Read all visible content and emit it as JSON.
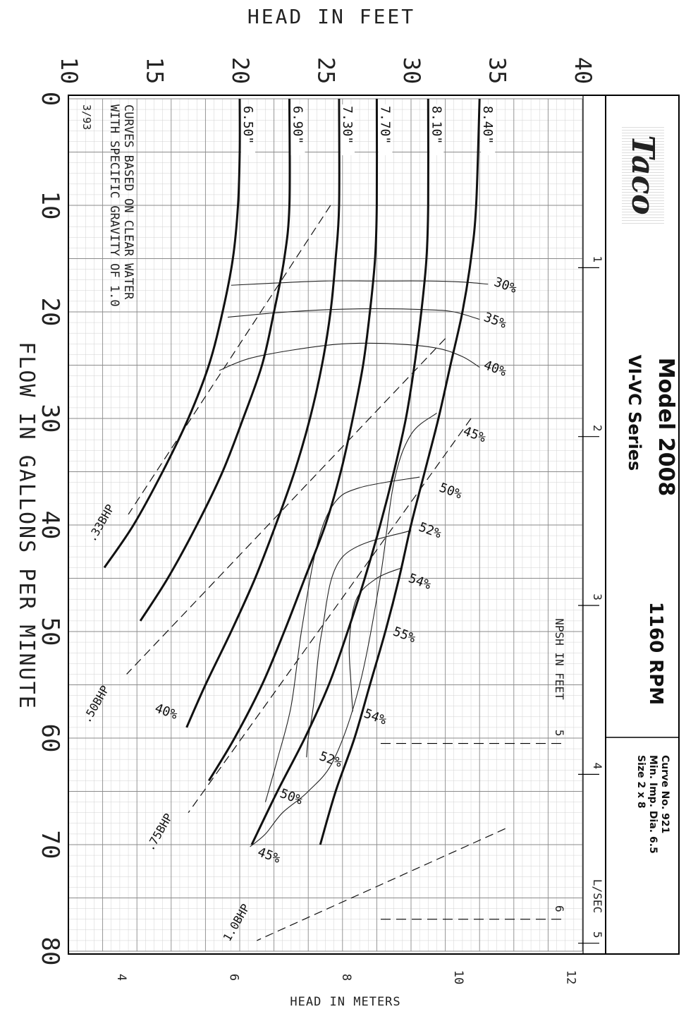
{
  "chart_data": {
    "type": "line",
    "title": "",
    "xlabel": "FLOW IN GALLONS PER MINUTE",
    "ylabel": "HEAD IN FEET",
    "y2label": "HEAD IN METERS",
    "x_top_label": "L/SEC",
    "npsh_label": "NPSH IN FEET",
    "xlim": [
      0,
      80
    ],
    "ylim": [
      10,
      40
    ],
    "x_ticks": [
      "0",
      "10",
      "20",
      "30",
      "40",
      "50",
      "60",
      "70",
      "80"
    ],
    "y_ticks": [
      "10",
      "15",
      "20",
      "25",
      "30",
      "35",
      "40"
    ],
    "y2_ticks": [
      "4",
      "6",
      "8",
      "10",
      "12"
    ],
    "lsec_ticks": [
      "1",
      "2",
      "3",
      "4",
      "5"
    ],
    "npsh_ticks": [
      "5",
      "6"
    ],
    "grid": true,
    "date_code": "3/93",
    "note_line1": "CURVES BASED ON CLEAR WATER",
    "note_line2": "WITH SPECIFIC GRAVITY OF 1.0",
    "impeller_curves": [
      {
        "name": "6.50\"",
        "x": [
          0,
          5,
          10,
          15,
          20,
          25,
          30,
          35,
          40,
          44
        ],
        "y": [
          20.0,
          20.0,
          19.9,
          19.6,
          19.0,
          18.2,
          17.0,
          15.5,
          13.8,
          12.1
        ]
      },
      {
        "name": "6.90\"",
        "x": [
          0,
          10,
          15,
          20,
          25,
          30,
          35,
          40,
          45,
          49
        ],
        "y": [
          22.9,
          22.9,
          22.6,
          22.0,
          21.3,
          20.2,
          19.0,
          17.5,
          15.8,
          14.2
        ]
      },
      {
        "name": "7.30\"",
        "x": [
          0,
          10,
          15,
          20,
          25,
          30,
          35,
          40,
          45,
          50,
          55,
          59
        ],
        "y": [
          25.8,
          25.8,
          25.6,
          25.3,
          24.8,
          24.1,
          23.2,
          22.1,
          20.9,
          19.5,
          18.0,
          16.9
        ]
      },
      {
        "name": "7.70\"",
        "x": [
          0,
          10,
          15,
          20,
          25,
          30,
          35,
          40,
          45,
          50,
          55,
          60,
          64
        ],
        "y": [
          28.0,
          28.0,
          27.9,
          27.6,
          27.2,
          26.6,
          25.9,
          25.0,
          23.8,
          22.6,
          21.3,
          19.7,
          18.2
        ]
      },
      {
        "name": "8.10\"",
        "x": [
          0,
          10,
          15,
          20,
          25,
          30,
          35,
          40,
          45,
          50,
          55,
          60,
          65,
          70
        ],
        "y": [
          31.0,
          31.0,
          30.9,
          30.6,
          30.2,
          29.7,
          29.0,
          28.2,
          27.3,
          26.3,
          25.2,
          23.8,
          22.2,
          20.7
        ]
      },
      {
        "name": "8.40\"",
        "x": [
          0,
          10,
          15,
          20,
          25,
          30,
          35,
          40,
          45,
          50,
          55,
          60,
          65,
          70
        ],
        "y": [
          34.0,
          33.8,
          33.5,
          33.0,
          32.3,
          31.6,
          30.8,
          30.0,
          29.3,
          28.5,
          27.6,
          26.7,
          25.6,
          24.7
        ]
      }
    ],
    "efficiency_curves": [
      {
        "name": "30%",
        "x": [
          17.5,
          17.3,
          17.1,
          17.1,
          17.1,
          17.2,
          17.4
        ],
        "y": [
          19.5,
          22.0,
          25.0,
          28.0,
          31.0,
          33.0,
          34.5
        ]
      },
      {
        "name": "35%",
        "x": [
          20.5,
          20.1,
          19.8,
          19.7,
          19.8,
          20.0,
          20.7
        ],
        "y": [
          19.3,
          22.0,
          25.0,
          28.0,
          31.0,
          32.5,
          34.0
        ]
      },
      {
        "name": "40%",
        "x": [
          25.5,
          24.4,
          23.6,
          23.0,
          23.0,
          23.4,
          24.2,
          25.2
        ],
        "y": [
          18.8,
          20.5,
          23.0,
          26.0,
          29.0,
          31.5,
          33.0,
          34.0
        ]
      },
      {
        "name": "45%",
        "x": [
          29.5,
          31.5,
          36.0,
          45.0,
          55.0,
          62.0,
          65.0,
          67.0,
          69.0,
          70.2
        ],
        "y": [
          31.5,
          30.0,
          29.0,
          28.2,
          27.0,
          25.5,
          24.0,
          22.5,
          21.5,
          20.6
        ]
      },
      {
        "name": "50%",
        "x": [
          35.5,
          36.5,
          38.0,
          42.0,
          50.0,
          57.0,
          62.0,
          66.0
        ],
        "y": [
          30.5,
          27.0,
          25.5,
          24.5,
          23.6,
          23.0,
          22.2,
          21.5
        ]
      },
      {
        "name": "52%",
        "x": [
          40.5,
          43.0,
          50.0,
          57.0,
          60.0,
          61.8
        ],
        "y": [
          30.0,
          26.0,
          24.8,
          24.3,
          24.0,
          23.9
        ]
      },
      {
        "name": "54%",
        "x": [
          44.0,
          45.0,
          47.0,
          51.0,
          55.0,
          57.5
        ],
        "y": [
          29.5,
          28.0,
          26.8,
          26.4,
          26.5,
          26.6
        ]
      },
      {
        "name": "55%",
        "x": [
          49.0
        ],
        "y": [
          28.6
        ]
      }
    ],
    "efficiency_labels": [
      {
        "name": "30%",
        "x": 17.5,
        "y": 34.8
      },
      {
        "name": "35%",
        "x": 20.8,
        "y": 34.2
      },
      {
        "name": "40%",
        "x": 25.3,
        "y": 34.2
      },
      {
        "name": "45%",
        "x": 31.5,
        "y": 33.0
      },
      {
        "name": "50%",
        "x": 36.8,
        "y": 31.6
      },
      {
        "name": "52%",
        "x": 40.5,
        "y": 30.4
      },
      {
        "name": "54%",
        "x": 45.3,
        "y": 29.8
      },
      {
        "name": "55%",
        "x": 50.3,
        "y": 28.9
      },
      {
        "name": "54%",
        "x": 58.0,
        "y": 27.2
      },
      {
        "name": "52%",
        "x": 62.0,
        "y": 24.6
      },
      {
        "name": "50%",
        "x": 65.5,
        "y": 22.3
      },
      {
        "name": "45%",
        "x": 71.0,
        "y": 21.0
      },
      {
        "name": "40%",
        "x": 57.5,
        "y": 15.0
      }
    ],
    "hp_lines": [
      {
        "name": ".33BHP",
        "x": [
          10.0,
          39.0
        ],
        "y": [
          25.3,
          13.5
        ],
        "label_x": 40.0,
        "label_y": 12.1
      },
      {
        "name": ".50BHP",
        "x": [
          22.5,
          54.0
        ],
        "y": [
          32.0,
          13.4
        ],
        "label_x": 57.0,
        "label_y": 11.8
      },
      {
        "name": ".75BHP",
        "x": [
          30.0,
          67.0
        ],
        "y": [
          33.5,
          17.0
        ],
        "label_x": 69.0,
        "label_y": 15.5
      },
      {
        "name": "1.0BHP",
        "x": [
          68.5,
          79.0
        ],
        "y": [
          35.5,
          21.0
        ],
        "label_x": 77.5,
        "label_y": 20.0
      }
    ]
  },
  "header": {
    "logo": "Taco",
    "model": "Model 2008",
    "series": "VI-VC Series",
    "rpm": "1160 RPM",
    "curve_no": "Curve No. 921",
    "min_imp": "Min. Imp. Dia. 6.5",
    "size": "Size 2 x 8"
  }
}
